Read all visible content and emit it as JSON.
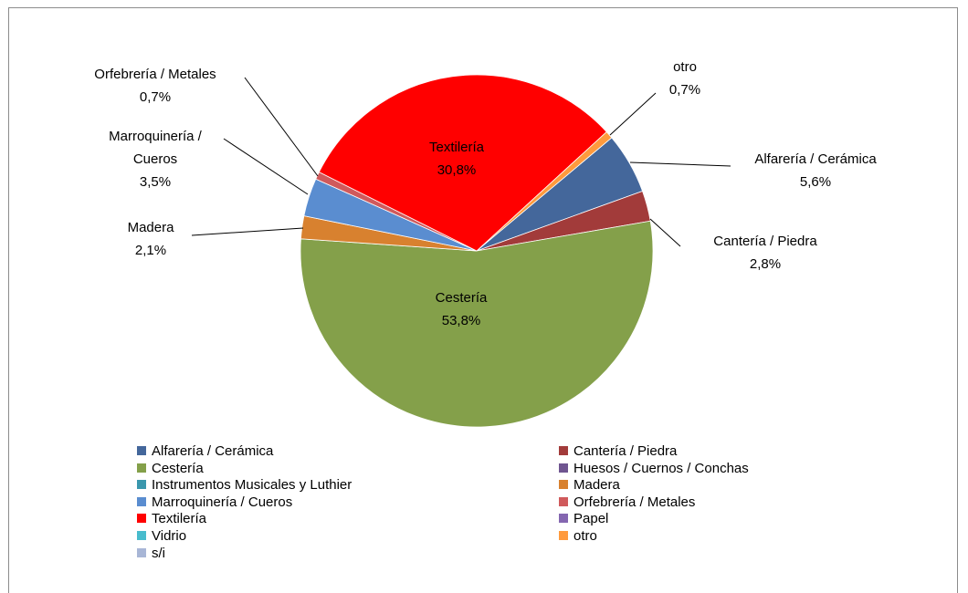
{
  "chart_data": {
    "type": "pie",
    "categories": [
      "Alfarería / Cerámica",
      "Cantería / Piedra",
      "Cestería",
      "Huesos / Cuernos / Conchas",
      "Instrumentos Musicales y Luthier",
      "Madera",
      "Marroquinería / Cueros",
      "Orfebrería / Metales",
      "Textilería",
      "Papel",
      "Vidrio",
      "otro",
      "s/i"
    ],
    "values": [
      5.6,
      2.8,
      53.8,
      0,
      0,
      2.1,
      3.5,
      0.7,
      30.8,
      0,
      0,
      0.7,
      0
    ],
    "value_labels": [
      "5,6%",
      "2,8%",
      "53,8%",
      null,
      null,
      "2,1%",
      "3,5%",
      "0,7%",
      "30,8%",
      null,
      null,
      "0,7%",
      null
    ],
    "colors": [
      "#44679b",
      "#a23b3a",
      "#84a04a",
      "#6f5590",
      "#3a97ad",
      "#d8812f",
      "#5a8dd0",
      "#d05a5c",
      "#ff0000",
      "#8466b0",
      "#48bccd",
      "#ff9a3d",
      "#a8b6d6"
    ],
    "legend": "bottom"
  }
}
